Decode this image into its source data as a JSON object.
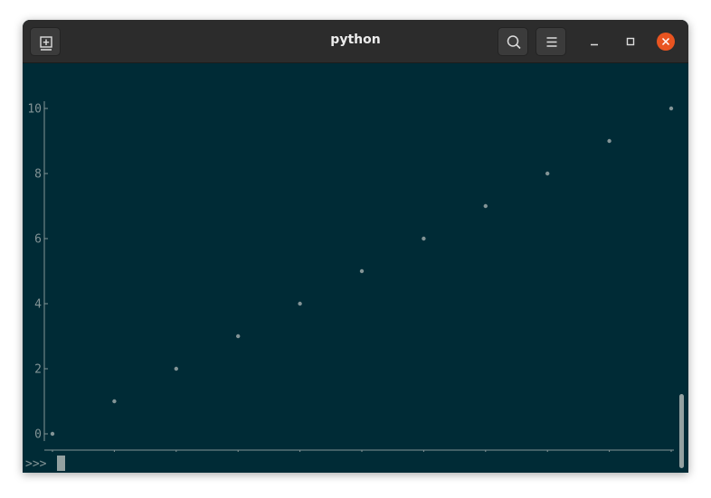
{
  "window": {
    "title": "python"
  },
  "icons": {
    "new_tab": "new-tab-icon",
    "search": "search-icon",
    "menu": "hamburger-menu-icon",
    "minimize": "minimize-icon",
    "maximize": "maximize-icon",
    "close": "close-icon"
  },
  "colors": {
    "terminal_bg": "#002b36",
    "fg": "#839496",
    "close_button": "#e95420"
  },
  "terminal": {
    "prompt": ">>>"
  },
  "chart_data": {
    "type": "scatter",
    "x": [
      0,
      1,
      2,
      3,
      4,
      5,
      6,
      7,
      8,
      9,
      10
    ],
    "y": [
      0,
      1,
      2,
      3,
      4,
      5,
      6,
      7,
      8,
      9,
      10
    ],
    "xlim": [
      0,
      10
    ],
    "ylim": [
      0,
      10
    ],
    "xticks": [
      "0",
      "1",
      "2",
      "3",
      "4",
      "5",
      "6",
      "7",
      "8",
      "9",
      "10"
    ],
    "yticks": [
      "0",
      "2",
      "4",
      "6",
      "8",
      "10"
    ],
    "grid": false
  }
}
